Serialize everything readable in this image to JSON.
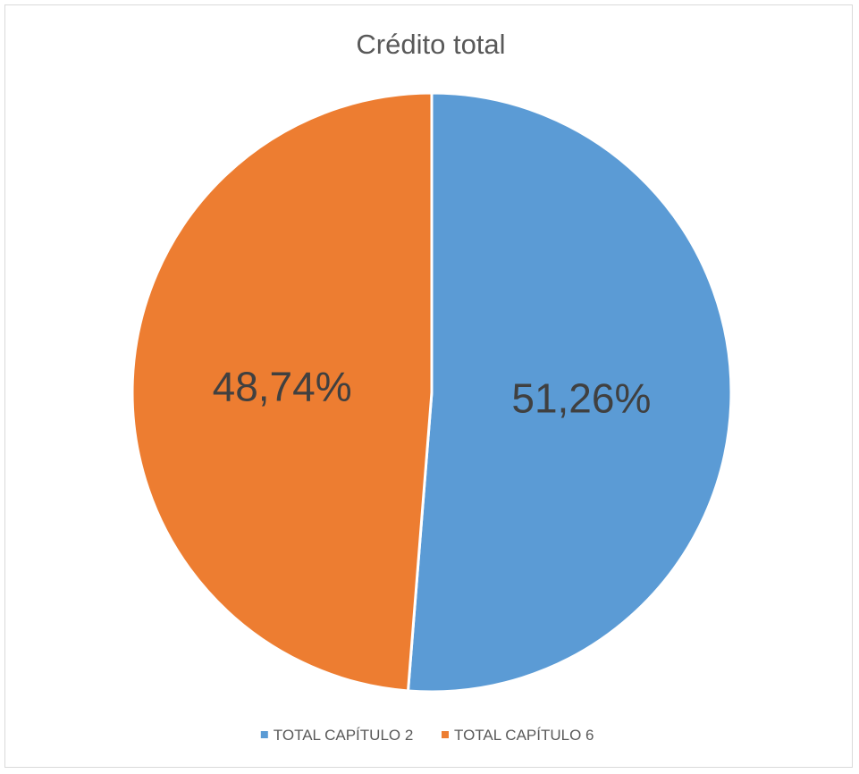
{
  "chart_data": {
    "type": "pie",
    "title": "Crédito total",
    "series": [
      {
        "name": "",
        "slices": [
          {
            "label": "TOTAL CAPÍTULO 2",
            "value": 51.26,
            "data_label": "51,26%",
            "color": "#5b9bd5"
          },
          {
            "label": "TOTAL CAPÍTULO 6",
            "value": 48.74,
            "data_label": "48,74%",
            "color": "#ed7d31"
          }
        ]
      }
    ],
    "legend": {
      "position": "bottom",
      "entries": [
        "TOTAL CAPÍTULO 2",
        "TOTAL CAPÍTULO 6"
      ]
    },
    "start_angle": "top",
    "direction": "clockwise",
    "slice_border_color": "#ffffff"
  }
}
